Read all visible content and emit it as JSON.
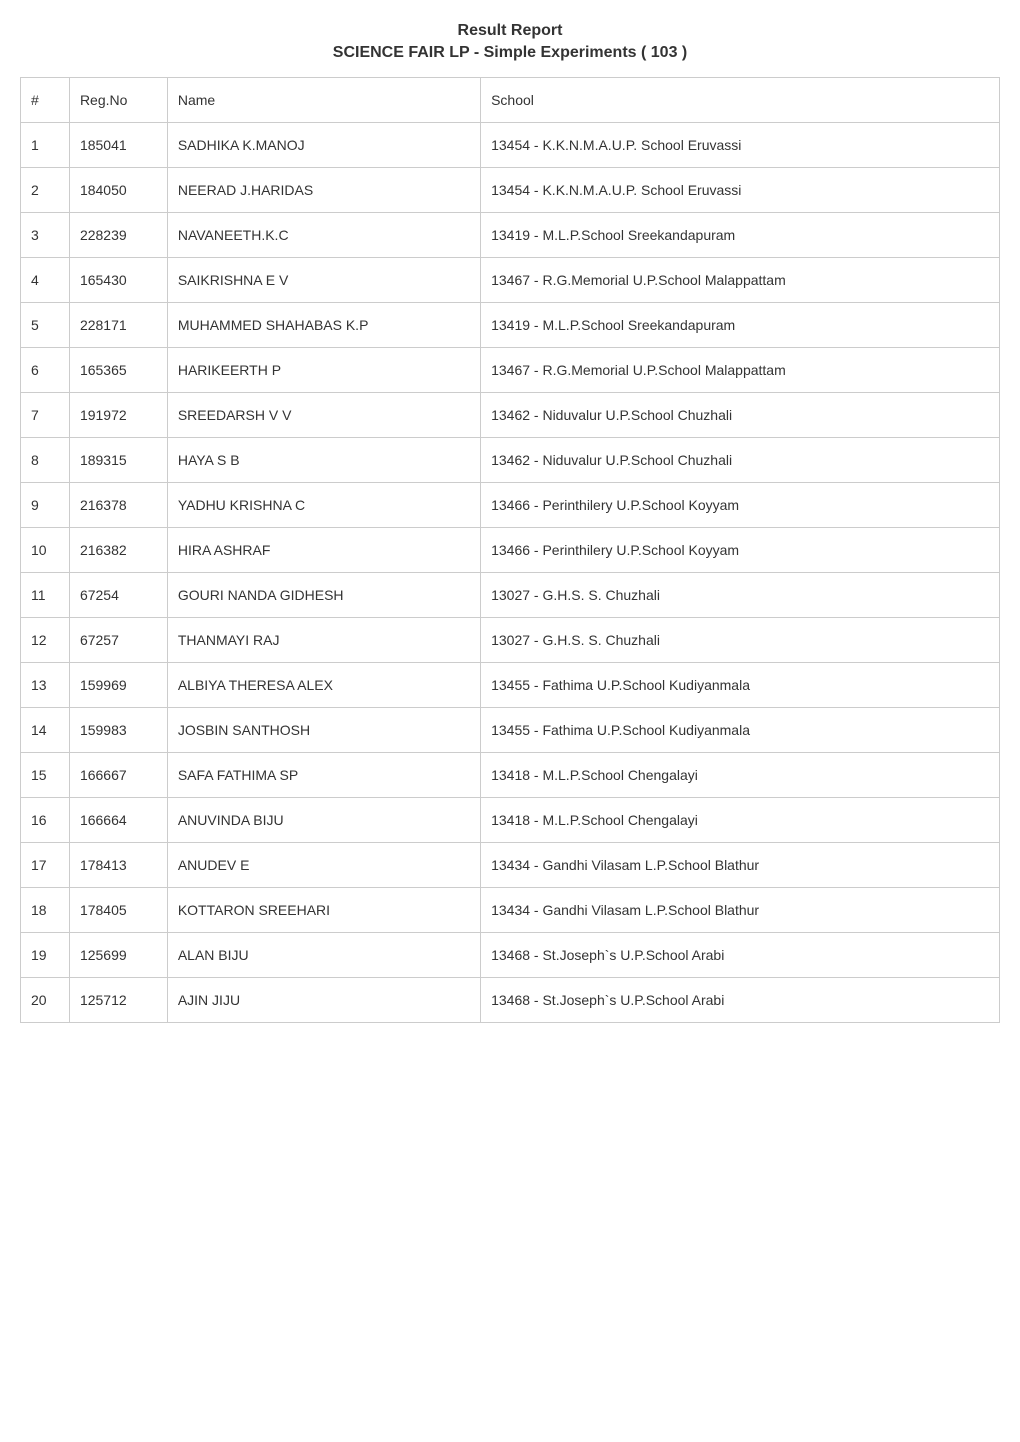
{
  "title": {
    "line1": "Result Report",
    "line2": "SCIENCE FAIR LP - Simple Experiments ( 103 )"
  },
  "table": {
    "columns": [
      "#",
      "Reg.No",
      "Name",
      "School"
    ],
    "rows": [
      [
        "1",
        "185041",
        "SADHIKA K.MANOJ",
        "13454 - K.K.N.M.A.U.P. School Eruvassi"
      ],
      [
        "2",
        "184050",
        "NEERAD J.HARIDAS",
        "13454 - K.K.N.M.A.U.P. School Eruvassi"
      ],
      [
        "3",
        "228239",
        "NAVANEETH.K.C",
        "13419 - M.L.P.School Sreekandapuram"
      ],
      [
        "4",
        "165430",
        "SAIKRISHNA E V",
        "13467 - R.G.Memorial U.P.School Malappattam"
      ],
      [
        "5",
        "228171",
        "MUHAMMED SHAHABAS K.P",
        "13419 - M.L.P.School Sreekandapuram"
      ],
      [
        "6",
        "165365",
        "HARIKEERTH P",
        "13467 - R.G.Memorial U.P.School Malappattam"
      ],
      [
        "7",
        "191972",
        "SREEDARSH V V",
        "13462 - Niduvalur U.P.School Chuzhali"
      ],
      [
        "8",
        "189315",
        "HAYA S B",
        "13462 - Niduvalur U.P.School Chuzhali"
      ],
      [
        "9",
        "216378",
        "YADHU KRISHNA C",
        "13466 - Perinthilery U.P.School Koyyam"
      ],
      [
        "10",
        "216382",
        "HIRA ASHRAF",
        "13466 - Perinthilery U.P.School Koyyam"
      ],
      [
        "11",
        "67254",
        "GOURI NANDA GIDHESH",
        "13027 - G.H.S. S. Chuzhali"
      ],
      [
        "12",
        "67257",
        "THANMAYI RAJ",
        "13027 - G.H.S. S. Chuzhali"
      ],
      [
        "13",
        "159969",
        "ALBIYA THERESA ALEX",
        "13455 - Fathima U.P.School Kudiyanmala"
      ],
      [
        "14",
        "159983",
        "JOSBIN SANTHOSH",
        "13455 - Fathima U.P.School Kudiyanmala"
      ],
      [
        "15",
        "166667",
        "SAFA FATHIMA SP",
        "13418 - M.L.P.School Chengalayi"
      ],
      [
        "16",
        "166664",
        "ANUVINDA BIJU",
        "13418 - M.L.P.School Chengalayi"
      ],
      [
        "17",
        "178413",
        "ANUDEV E",
        "13434 - Gandhi Vilasam L.P.School Blathur"
      ],
      [
        "18",
        "178405",
        "KOTTARON SREEHARI",
        "13434 - Gandhi Vilasam L.P.School Blathur"
      ],
      [
        "19",
        "125699",
        "ALAN BIJU",
        "13468 - St.Joseph`s U.P.School Arabi"
      ],
      [
        "20",
        "125712",
        "AJIN JIJU",
        "13468 - St.Joseph`s U.P.School Arabi"
      ]
    ]
  },
  "style": {
    "border_color": "#cccccc",
    "background_color": "#ffffff",
    "text_color": "#333333",
    "title_fontsize": 16,
    "cell_fontsize": 14,
    "cell_padding_v": 14,
    "cell_padding_h": 10,
    "column_widths_pct": [
      5,
      10,
      32,
      53
    ]
  }
}
